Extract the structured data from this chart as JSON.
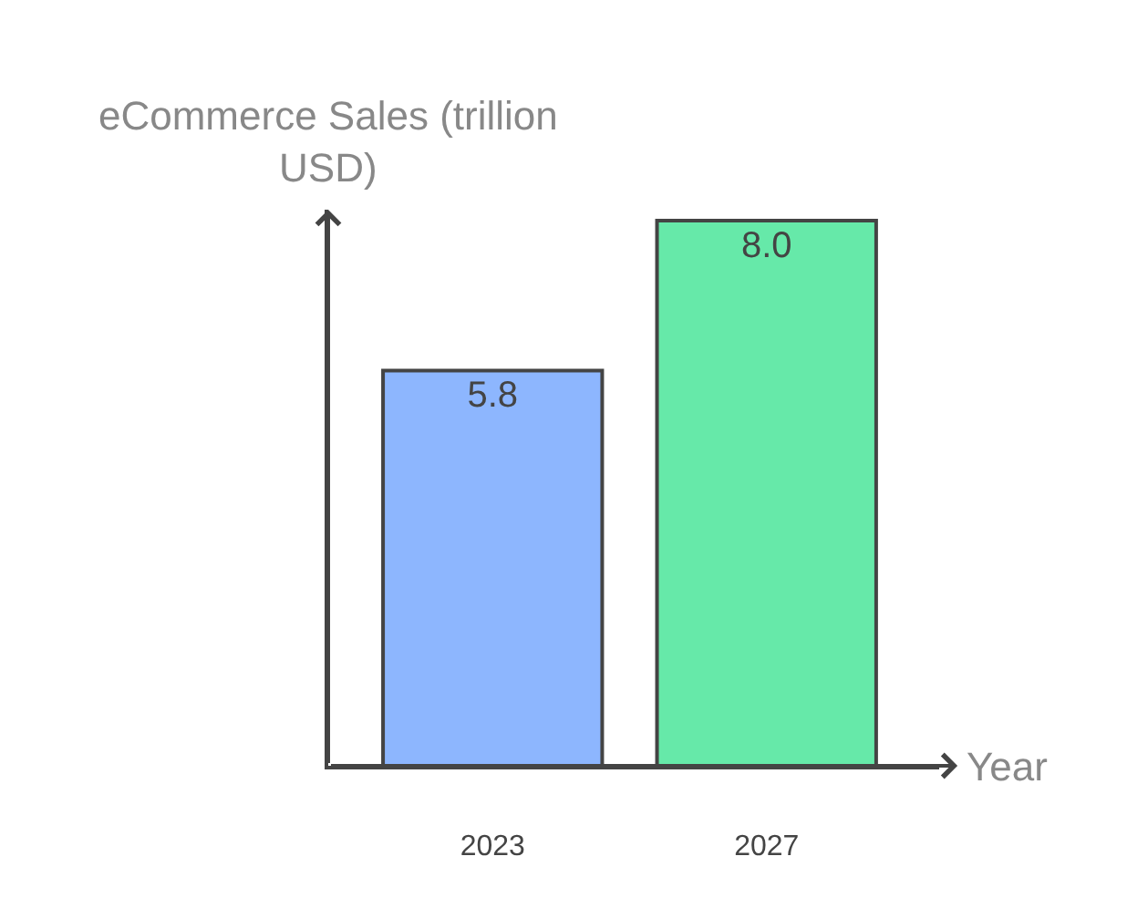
{
  "chart_data": {
    "type": "bar",
    "categories": [
      "2023",
      "2027"
    ],
    "values": [
      5.8,
      8.0
    ],
    "value_labels": [
      "5.8",
      "8.0"
    ],
    "colors": [
      "#8db6fe",
      "#66e9a9"
    ],
    "xlabel": "Year",
    "ylabel": "eCommerce Sales (trillion USD)"
  }
}
